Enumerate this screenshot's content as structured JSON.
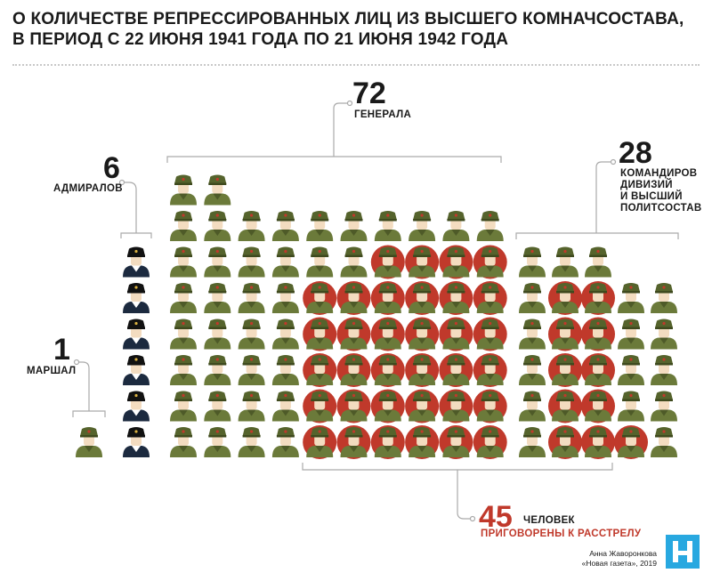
{
  "title_lines": [
    "О КОЛИЧЕСТВЕ РЕПРЕССИРОВАННЫХ ЛИЦ ИЗ ВЫСШЕГО КОМНАЧСОСТАВА,",
    "В ПЕРИОД С 22 ИЮНЯ 1941 ГОДА ПО 21 ИЮНЯ 1942 ГОДА"
  ],
  "groups": {
    "marshal": {
      "count": "1",
      "label": "МАРШАЛ"
    },
    "admirals": {
      "count": "6",
      "label": "АДМИРАЛОВ"
    },
    "generals": {
      "count": "72",
      "label": "ГЕНЕРАЛА"
    },
    "commanders": {
      "count": "28",
      "label_lines": [
        "КОМАНДИРОВ",
        "ДИВИЗИЙ",
        "И ВЫСШИЙ",
        "ПОЛИТСОСТАВ"
      ]
    }
  },
  "executed": {
    "count": "45",
    "label_top": "ЧЕЛОВЕК",
    "label_bottom": "ПРИГОВОРЕНЫ К РАССТРЕЛУ"
  },
  "credit": {
    "author": "Анна Жаворонкова",
    "source": "«Новая газета», 2019"
  },
  "colors": {
    "red": "#c0392b",
    "uniform": "#6b7a3a",
    "navy": "#1c2a3f",
    "skin": "#f3dcc0",
    "logo": "#28a8e0"
  },
  "chart_data": {
    "type": "pictogram",
    "categories": [
      "Маршал",
      "Адмиралы",
      "Генералы",
      "Командиры дивизий и высший политсостав"
    ],
    "values": [
      1,
      6,
      72,
      28
    ],
    "executed": 45,
    "generals_column_heights": [
      8,
      8,
      7,
      7,
      7,
      7,
      7,
      7,
      7,
      7
    ],
    "generals_executed_per_column": [
      0,
      0,
      0,
      0,
      5,
      5,
      6,
      6,
      6,
      6
    ],
    "commanders_column_heights": [
      6,
      6,
      6,
      5,
      5
    ],
    "commanders_executed_per_column": [
      0,
      5,
      5,
      1,
      0
    ]
  }
}
